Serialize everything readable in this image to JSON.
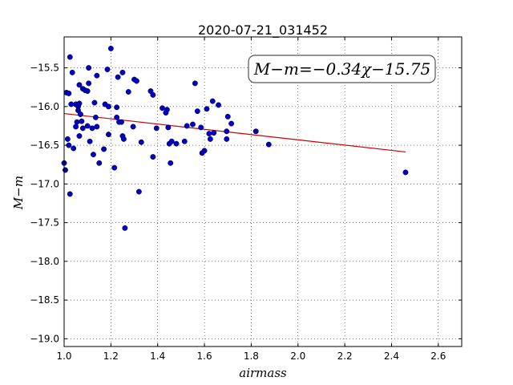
{
  "chart_data": {
    "type": "scatter",
    "title": "2020-07-21_031452",
    "xlabel": "airmass",
    "ylabel": "M−m",
    "xlim": [
      1.0,
      2.7
    ],
    "ylim": [
      -19.1,
      -15.1
    ],
    "x_ticks": [
      1.0,
      1.2,
      1.4,
      1.6,
      1.8,
      2.0,
      2.2,
      2.4,
      2.6
    ],
    "x_tick_labels": [
      "1.0",
      "1.2",
      "1.4",
      "1.6",
      "1.8",
      "2.0",
      "2.2",
      "2.4",
      "2.6"
    ],
    "y_ticks": [
      -15.5,
      -16.0,
      -16.5,
      -17.0,
      -17.5,
      -18.0,
      -18.5,
      -19.0
    ],
    "y_tick_labels": [
      "−15.5",
      "−16.0",
      "−16.5",
      "−17.0",
      "−17.5",
      "−18.0",
      "−18.5",
      "−19.0"
    ],
    "grid": true,
    "annotation": "M−m=−0.34χ−15.75",
    "point_color": "#0000cc",
    "fit_color": "#cc0000",
    "fit": {
      "slope": -0.34,
      "intercept": -15.75,
      "x_range": [
        1.0,
        2.46
      ]
    },
    "points": [
      [
        1.0,
        -16.73
      ],
      [
        1.005,
        -16.82
      ],
      [
        1.01,
        -15.82
      ],
      [
        1.015,
        -16.42
      ],
      [
        1.02,
        -15.83
      ],
      [
        1.02,
        -16.5
      ],
      [
        1.025,
        -15.36
      ],
      [
        1.025,
        -17.13
      ],
      [
        1.03,
        -15.97
      ],
      [
        1.035,
        -15.56
      ],
      [
        1.04,
        -16.54
      ],
      [
        1.05,
        -15.97
      ],
      [
        1.05,
        -16.26
      ],
      [
        1.055,
        -16.2
      ],
      [
        1.06,
        -16.0
      ],
      [
        1.06,
        -16.05
      ],
      [
        1.065,
        -15.72
      ],
      [
        1.065,
        -15.96
      ],
      [
        1.065,
        -16.38
      ],
      [
        1.07,
        -16.1
      ],
      [
        1.075,
        -16.19
      ],
      [
        1.08,
        -15.77
      ],
      [
        1.08,
        -16.28
      ],
      [
        1.09,
        -15.79
      ],
      [
        1.1,
        -15.8
      ],
      [
        1.1,
        -16.25
      ],
      [
        1.105,
        -15.5
      ],
      [
        1.105,
        -15.7
      ],
      [
        1.11,
        -16.45
      ],
      [
        1.12,
        -16.28
      ],
      [
        1.125,
        -16.62
      ],
      [
        1.13,
        -15.95
      ],
      [
        1.135,
        -16.14
      ],
      [
        1.14,
        -15.6
      ],
      [
        1.14,
        -16.26
      ],
      [
        1.15,
        -16.73
      ],
      [
        1.17,
        -16.55
      ],
      [
        1.175,
        -15.97
      ],
      [
        1.185,
        -15.52
      ],
      [
        1.19,
        -16.0
      ],
      [
        1.19,
        -16.36
      ],
      [
        1.2,
        -15.25
      ],
      [
        1.215,
        -16.79
      ],
      [
        1.225,
        -16.14
      ],
      [
        1.225,
        -16.01
      ],
      [
        1.23,
        -15.62
      ],
      [
        1.235,
        -16.2
      ],
      [
        1.245,
        -16.2
      ],
      [
        1.25,
        -16.38
      ],
      [
        1.25,
        -15.56
      ],
      [
        1.255,
        -16.42
      ],
      [
        1.26,
        -17.57
      ],
      [
        1.275,
        -15.81
      ],
      [
        1.295,
        -16.26
      ],
      [
        1.3,
        -15.65
      ],
      [
        1.31,
        -15.67
      ],
      [
        1.32,
        -17.1
      ],
      [
        1.33,
        -16.46
      ],
      [
        1.37,
        -15.8
      ],
      [
        1.38,
        -16.65
      ],
      [
        1.38,
        -15.85
      ],
      [
        1.395,
        -16.28
      ],
      [
        1.42,
        -16.02
      ],
      [
        1.435,
        -16.08
      ],
      [
        1.44,
        -16.04
      ],
      [
        1.445,
        -16.27
      ],
      [
        1.45,
        -16.48
      ],
      [
        1.455,
        -16.73
      ],
      [
        1.46,
        -16.45
      ],
      [
        1.48,
        -16.48
      ],
      [
        1.515,
        -16.45
      ],
      [
        1.525,
        -16.25
      ],
      [
        1.55,
        -16.23
      ],
      [
        1.56,
        -15.7
      ],
      [
        1.57,
        -16.06
      ],
      [
        1.585,
        -16.27
      ],
      [
        1.59,
        -16.6
      ],
      [
        1.6,
        -16.57
      ],
      [
        1.61,
        -16.03
      ],
      [
        1.62,
        -16.35
      ],
      [
        1.625,
        -16.42
      ],
      [
        1.635,
        -15.93
      ],
      [
        1.64,
        -16.34
      ],
      [
        1.66,
        -15.98
      ],
      [
        1.695,
        -16.42
      ],
      [
        1.695,
        -16.32
      ],
      [
        1.7,
        -16.13
      ],
      [
        1.715,
        -16.22
      ],
      [
        1.82,
        -16.32
      ],
      [
        1.875,
        -16.49
      ],
      [
        2.46,
        -16.85
      ]
    ]
  }
}
